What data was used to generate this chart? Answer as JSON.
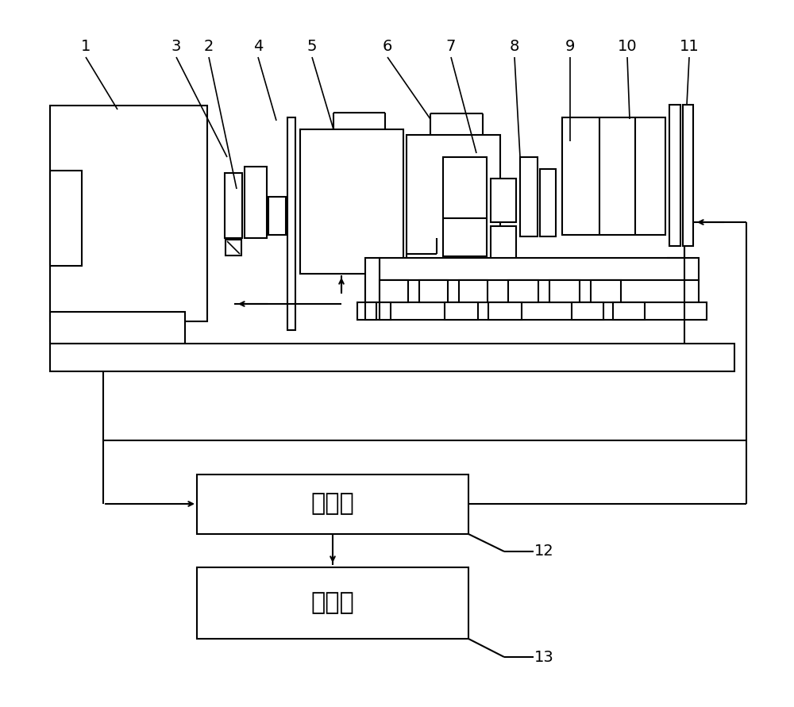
{
  "bg_color": "#ffffff",
  "line_color": "#000000",
  "lw": 1.5,
  "mcu_text": "单片机",
  "computer_text": "计算机",
  "label_12": "12",
  "label_13": "13",
  "num_labels": [
    [
      "1",
      108,
      58
    ],
    [
      "3",
      222,
      58
    ],
    [
      "2",
      263,
      58
    ],
    [
      "4",
      325,
      58
    ],
    [
      "5",
      393,
      58
    ],
    [
      "6",
      488,
      58
    ],
    [
      "7",
      568,
      58
    ],
    [
      "8",
      648,
      58
    ],
    [
      "9",
      718,
      58
    ],
    [
      "10",
      790,
      58
    ],
    [
      "11",
      868,
      58
    ]
  ],
  "leader_lines": [
    [
      108,
      72,
      148,
      138
    ],
    [
      222,
      72,
      286,
      198
    ],
    [
      263,
      72,
      298,
      238
    ],
    [
      325,
      72,
      348,
      152
    ],
    [
      393,
      72,
      420,
      163
    ],
    [
      488,
      72,
      542,
      150
    ],
    [
      568,
      72,
      600,
      193
    ],
    [
      648,
      72,
      655,
      198
    ],
    [
      718,
      72,
      718,
      178
    ],
    [
      790,
      72,
      793,
      150
    ],
    [
      868,
      72,
      865,
      132
    ]
  ]
}
